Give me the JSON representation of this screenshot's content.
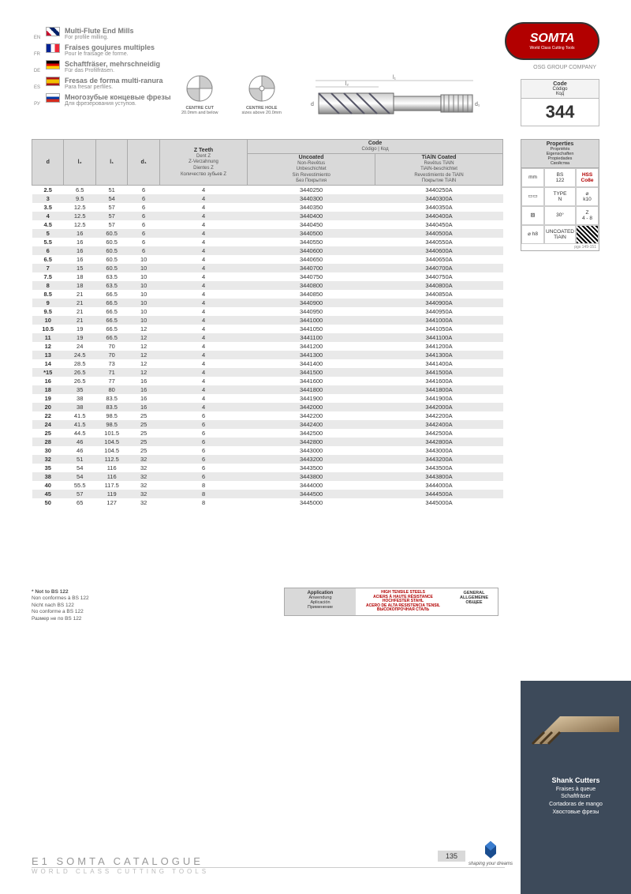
{
  "langs": [
    {
      "code": "EN",
      "flagClass": "flag-en",
      "title": "Multi-Flute End Mills",
      "sub": "For profile milling."
    },
    {
      "code": "FR",
      "flagClass": "flag-fr",
      "title": "Fraises goujures multiples",
      "sub": "Pour le fraisage de forme."
    },
    {
      "code": "DE",
      "flagClass": "flag-de",
      "title": "Schaftfräser, mehrschneidig",
      "sub": "Für das Profilfräsen."
    },
    {
      "code": "ES",
      "flagClass": "flag-es",
      "title": "Fresas de forma multi-ranura",
      "sub": "Para fresar perfiles."
    },
    {
      "code": "РУ",
      "flagClass": "flag-ru",
      "title": "Многозубые концевые фрезы",
      "sub": "Для фрезерования уступов."
    }
  ],
  "brand": "SOMTA",
  "brand_tag": "World Class Cutting Tools",
  "osg_company": "OSG GROUP COMPANY",
  "diagrams": [
    {
      "label": "CENTRE CUT",
      "sub": "20.0mm and below"
    },
    {
      "label": "CENTRE HOLE",
      "sub": "sizes above 20.0mm"
    }
  ],
  "code_box": {
    "head": "Code",
    "sub1": "Código",
    "sub2": "Код",
    "num": "344"
  },
  "table": {
    "head": {
      "d": "d",
      "l2": "l₂",
      "l1": "l₁",
      "d1": "d₁",
      "z": "Z Teeth",
      "z_sub": "Dent Z\nZ-Verzahnung\nDientes Z\nКоличество зубьев Z",
      "code": "Code",
      "code_sub": "Código | Код",
      "unc": "Uncoated",
      "unc_sub": "Non-Revêtus\nUnbeschichtet\nSin Revestimiento\nБез Покрытия",
      "tia": "TiAlN Coated",
      "tia_sub": "Revêtus TiAlN\nTiAlN-beschichtet\nRevestimiento de TiAlN\nПокрытие TiAlN"
    },
    "rows": [
      [
        "2.5",
        "6.5",
        "51",
        "6",
        "4",
        "3440250",
        "3440250A"
      ],
      [
        "3",
        "9.5",
        "54",
        "6",
        "4",
        "3440300",
        "3440300A"
      ],
      [
        "3.5",
        "12.5",
        "57",
        "6",
        "4",
        "3440350",
        "3440350A"
      ],
      [
        "4",
        "12.5",
        "57",
        "6",
        "4",
        "3440400",
        "3440400A"
      ],
      [
        "4.5",
        "12.5",
        "57",
        "6",
        "4",
        "3440450",
        "3440450A"
      ],
      [
        "5",
        "16",
        "60.5",
        "6",
        "4",
        "3440500",
        "3440500A"
      ],
      [
        "5.5",
        "16",
        "60.5",
        "6",
        "4",
        "3440550",
        "3440550A"
      ],
      [
        "6",
        "16",
        "60.5",
        "6",
        "4",
        "3440600",
        "3440600A"
      ],
      [
        "6.5",
        "16",
        "60.5",
        "10",
        "4",
        "3440650",
        "3440650A"
      ],
      [
        "7",
        "15",
        "60.5",
        "10",
        "4",
        "3440700",
        "3440700A"
      ],
      [
        "7.5",
        "18",
        "63.5",
        "10",
        "4",
        "3440750",
        "3440750A"
      ],
      [
        "8",
        "18",
        "63.5",
        "10",
        "4",
        "3440800",
        "3440800A"
      ],
      [
        "8.5",
        "21",
        "66.5",
        "10",
        "4",
        "3440850",
        "3440850A"
      ],
      [
        "9",
        "21",
        "66.5",
        "10",
        "4",
        "3440900",
        "3440900A"
      ],
      [
        "9.5",
        "21",
        "66.5",
        "10",
        "4",
        "3440950",
        "3440950A"
      ],
      [
        "10",
        "21",
        "66.5",
        "10",
        "4",
        "3441000",
        "3441000A"
      ],
      [
        "10.5",
        "19",
        "66.5",
        "12",
        "4",
        "3441050",
        "3441050A"
      ],
      [
        "11",
        "19",
        "66.5",
        "12",
        "4",
        "3441100",
        "3441100A"
      ],
      [
        "12",
        "24",
        "70",
        "12",
        "4",
        "3441200",
        "3441200A"
      ],
      [
        "13",
        "24.5",
        "70",
        "12",
        "4",
        "3441300",
        "3441300A"
      ],
      [
        "14",
        "28.5",
        "73",
        "12",
        "4",
        "3441400",
        "3441400A"
      ],
      [
        "*15",
        "26.5",
        "71",
        "12",
        "4",
        "3441500",
        "3441500A"
      ],
      [
        "16",
        "26.5",
        "77",
        "16",
        "4",
        "3441600",
        "3441600A"
      ],
      [
        "18",
        "35",
        "80",
        "16",
        "4",
        "3441800",
        "3441800A"
      ],
      [
        "19",
        "38",
        "83.5",
        "16",
        "4",
        "3441900",
        "3441900A"
      ],
      [
        "20",
        "38",
        "83.5",
        "16",
        "4",
        "3442000",
        "3442000A"
      ],
      [
        "22",
        "41.5",
        "98.5",
        "25",
        "6",
        "3442200",
        "3442200A"
      ],
      [
        "24",
        "41.5",
        "98.5",
        "25",
        "6",
        "3442400",
        "3442400A"
      ],
      [
        "25",
        "44.5",
        "101.5",
        "25",
        "6",
        "3442500",
        "3442500A"
      ],
      [
        "28",
        "46",
        "104.5",
        "25",
        "6",
        "3442800",
        "3442800A"
      ],
      [
        "30",
        "46",
        "104.5",
        "25",
        "6",
        "3443000",
        "3443000A"
      ],
      [
        "32",
        "51",
        "112.5",
        "32",
        "6",
        "3443200",
        "3443200A"
      ],
      [
        "35",
        "54",
        "116",
        "32",
        "6",
        "3443500",
        "3443500A"
      ],
      [
        "38",
        "54",
        "116",
        "32",
        "6",
        "3443800",
        "3443800A"
      ],
      [
        "40",
        "55.5",
        "117.5",
        "32",
        "8",
        "3444000",
        "3444000A"
      ],
      [
        "45",
        "57",
        "119",
        "32",
        "8",
        "3444500",
        "3444500A"
      ],
      [
        "50",
        "65",
        "127",
        "32",
        "8",
        "3445000",
        "3445000A"
      ]
    ]
  },
  "props": {
    "head": "Properties",
    "sub": "Propriétés\nEigenschaften\nPropiedades\nСвойства",
    "cells": [
      {
        "t": "mm"
      },
      {
        "t": "BS\n122"
      },
      {
        "t": "HSS\nCo8e",
        "red": true
      },
      {
        "t": "▭▭"
      },
      {
        "t": "TYPE\nN"
      },
      {
        "t": "⌀\nk10"
      },
      {
        "t": "▨"
      },
      {
        "t": "30°"
      },
      {
        "t": "Z\n4 - 8"
      },
      {
        "t": "⌀ h8"
      },
      {
        "t": "UNCOATED\nTiAlN"
      },
      {
        "t": "",
        "qr": true
      }
    ],
    "page_ref": "pgs 149-151"
  },
  "footnote": {
    "bold": "* Not to BS 122",
    "lines": [
      "Non conformes à BS 122",
      "Nicht nach BS 122",
      "No conforme a BS 122",
      "Размер не по BS 122"
    ]
  },
  "app": {
    "c1": "Application",
    "c1s": "Anwendung\nAplicación\nПрименение",
    "c2": "HIGH TENSILE STEELS\nACIERS À HAUTE RÉSISTANCE\nHOCHFESTER STAHL\nACERO DE ALTA RESISTENCIA TENSIL\nВЫСОКОПРОЧНАЯ СТАЛЬ",
    "c3": "GENERAL\nALLGEMEINE\nОБЩЕЕ"
  },
  "bottom": {
    "head": "Shank Cutters",
    "lines": [
      "Fraises à queue",
      "Schaftfräser",
      "Cortadoras de mango",
      "Хвостовые фрезы"
    ]
  },
  "footer": {
    "t1": "E1 SOMTA CATALOGUE",
    "t2": "WORLD CLASS CUTTING TOOLS",
    "page": "135",
    "osg": "shaping your dreams"
  }
}
